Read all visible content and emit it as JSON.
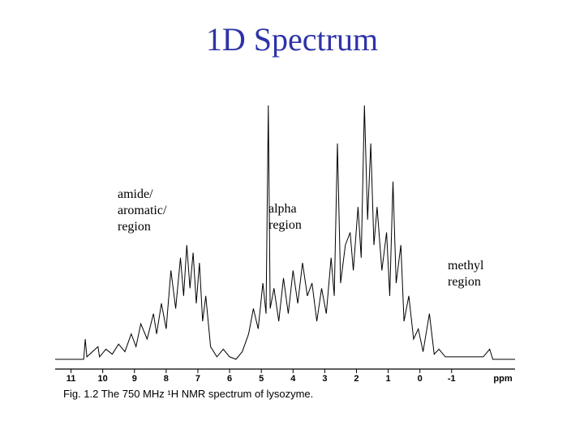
{
  "chart_data": {
    "type": "line",
    "title": "1D Spectrum",
    "x_label": "ppm",
    "caption": "Fig. 1.2  The 750 MHz ¹H NMR spectrum of lysozyme.",
    "annotations": [
      {
        "lines": [
          "amide/",
          "aromatic/",
          "region"
        ]
      },
      {
        "lines": [
          "alpha",
          "region"
        ]
      },
      {
        "lines": [
          "methyl",
          "region"
        ]
      }
    ],
    "xlim": [
      11.5,
      -3.0
    ],
    "xticks": [
      11,
      10,
      9,
      8,
      7,
      6,
      5,
      4,
      3,
      2,
      1,
      0,
      -1
    ],
    "ylim": [
      0,
      100
    ],
    "x": [
      11.5,
      10.6,
      10.55,
      10.5,
      10.15,
      10.1,
      9.9,
      9.7,
      9.5,
      9.3,
      9.1,
      8.95,
      8.8,
      8.6,
      8.4,
      8.3,
      8.15,
      8.0,
      7.85,
      7.7,
      7.55,
      7.45,
      7.35,
      7.25,
      7.15,
      7.05,
      6.95,
      6.85,
      6.75,
      6.6,
      6.4,
      6.2,
      6.0,
      5.8,
      5.6,
      5.4,
      5.25,
      5.1,
      4.95,
      4.85,
      4.78,
      4.72,
      4.6,
      4.45,
      4.3,
      4.15,
      4.0,
      3.85,
      3.7,
      3.55,
      3.4,
      3.25,
      3.1,
      2.95,
      2.8,
      2.7,
      2.6,
      2.5,
      2.35,
      2.2,
      2.1,
      1.95,
      1.85,
      1.75,
      1.65,
      1.55,
      1.45,
      1.35,
      1.2,
      1.05,
      0.95,
      0.85,
      0.75,
      0.6,
      0.5,
      0.35,
      0.2,
      0.05,
      -0.1,
      -0.3,
      -0.45,
      -0.6,
      -0.8,
      -2.0,
      -2.2,
      -2.3,
      -3.0
    ],
    "series": [
      {
        "color": "#000000",
        "values": [
          0,
          0,
          8,
          1,
          5,
          1,
          4,
          2,
          6,
          3,
          10,
          5,
          14,
          8,
          18,
          10,
          22,
          12,
          35,
          20,
          40,
          25,
          45,
          28,
          42,
          22,
          38,
          15,
          25,
          5,
          1,
          4,
          1,
          0,
          3,
          10,
          20,
          12,
          30,
          18,
          100,
          20,
          28,
          15,
          32,
          18,
          35,
          22,
          38,
          25,
          30,
          15,
          28,
          18,
          40,
          25,
          85,
          30,
          45,
          50,
          35,
          60,
          40,
          100,
          55,
          85,
          45,
          60,
          35,
          50,
          25,
          70,
          30,
          45,
          15,
          25,
          8,
          12,
          3,
          18,
          2,
          4,
          1,
          1,
          4,
          0,
          0
        ]
      }
    ]
  }
}
